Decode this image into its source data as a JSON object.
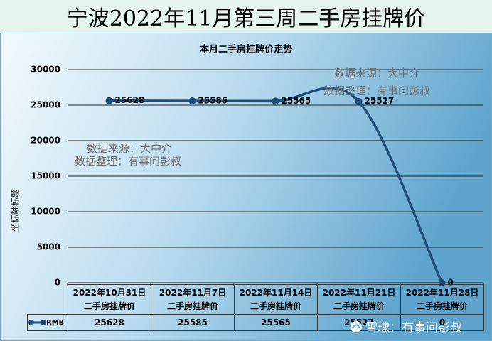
{
  "chart_data": {
    "type": "line",
    "banner_title": "宁波2022年11月第三周二手房挂牌价",
    "title": "本月二手房挂牌价走势",
    "y_label": "坐标轴标题",
    "categories": [
      "2022年10月31日\n二手房挂牌价",
      "2022年11月7日\n二手房挂牌价",
      "2022年11月14日\n二手房挂牌价",
      "2022年11月21日\n二手房挂牌价",
      "2022年11月28日\n二手房挂牌价"
    ],
    "series": [
      {
        "name": "RMB",
        "color": "#1f4e79",
        "values": [
          25628,
          25585,
          25565,
          25527,
          0
        ]
      }
    ],
    "ylim": [
      0,
      30000
    ],
    "yticks": [
      0,
      5000,
      10000,
      15000,
      20000,
      25000,
      30000
    ],
    "grid": true,
    "annotations": [
      "数据来源：大中介",
      "数据整理：有事问彭叔",
      "数据来源：大中介",
      "数据整理：有事问彭叔",
      "雪球：有事问彭叔"
    ]
  }
}
